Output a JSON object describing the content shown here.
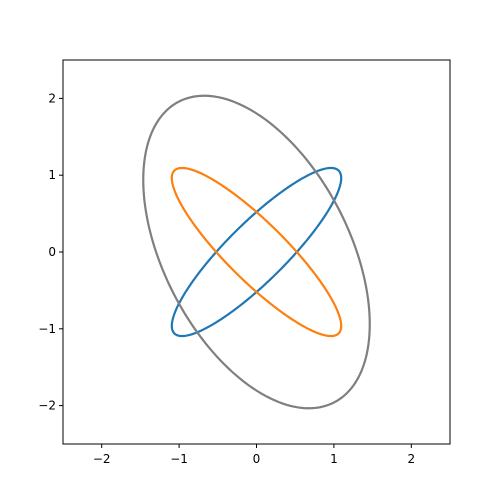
{
  "chart_data": {
    "type": "line",
    "title": "",
    "xlabel": "",
    "ylabel": "",
    "xlim": [
      -2.5,
      2.5
    ],
    "ylim": [
      -2.5,
      2.5
    ],
    "xticks": [
      -2,
      -1,
      0,
      1,
      2
    ],
    "yticks": [
      -2,
      -1,
      0,
      1,
      2
    ],
    "xtick_labels": [
      "−2",
      "−1",
      "0",
      "1",
      "2"
    ],
    "ytick_labels": [
      "−2",
      "−1",
      "0",
      "1",
      "2"
    ],
    "grid": false,
    "legend": "none",
    "series": [
      {
        "color": "#1f77b4",
        "shape": "ellipse",
        "center": [
          0,
          0
        ],
        "semi_axes": [
          1.5,
          0.38
        ],
        "angle_deg": 45,
        "x": [
          1.06,
          0.92,
          0.56,
          0.06,
          -0.42,
          -0.84,
          -1.06,
          -0.92,
          -0.56,
          -0.06,
          0.42,
          0.84,
          1.06
        ],
        "y": [
          1.06,
          1.08,
          0.89,
          0.56,
          0.06,
          -0.42,
          -0.86,
          -1.08,
          -0.89,
          -0.56,
          -0.06,
          0.42,
          0.86
        ]
      },
      {
        "color": "#ff7f0e",
        "shape": "ellipse",
        "center": [
          0,
          0
        ],
        "semi_axes": [
          1.5,
          0.38
        ],
        "angle_deg": -45,
        "x": [
          1.06,
          1.08,
          0.89,
          0.56,
          0.06,
          -0.42,
          -0.86,
          -1.08,
          -0.89,
          -0.56,
          -0.06,
          0.42,
          0.86,
          1.06
        ],
        "y": [
          -1.06,
          -0.92,
          -0.56,
          -0.06,
          0.42,
          0.84,
          1.06,
          0.92,
          0.56,
          0.06,
          -0.42,
          -0.84,
          -1.06,
          -1.06
        ]
      },
      {
        "color": "#7f7f7f",
        "shape": "ellipse",
        "center": [
          0,
          0
        ],
        "semi_axes": [
          2.2,
          1.2
        ],
        "angle_deg": -63,
        "x": [
          1.0,
          1.37,
          1.35,
          0.99,
          0.5,
          -0.05,
          -0.57,
          -1.0,
          -1.37,
          -1.35,
          -0.99,
          -0.5,
          0.05,
          0.57,
          1.0
        ],
        "y": [
          -1.96,
          -1.0,
          0.0,
          1.0,
          1.96,
          1.95,
          1.55,
          -0.0,
          1.0,
          0.0,
          -1.0,
          -1.96,
          -1.95,
          -1.55,
          -1.96
        ]
      }
    ]
  }
}
